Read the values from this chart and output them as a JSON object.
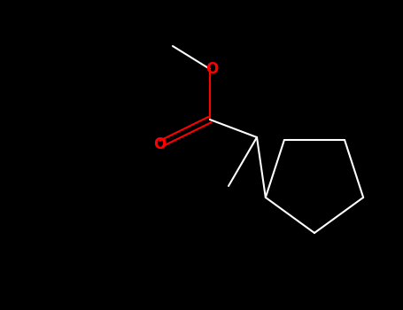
{
  "background_color": "#000000",
  "bond_color": "#ffffff",
  "oxygen_color": "#ff0000",
  "line_width": 1.5,
  "figsize": [
    4.55,
    3.5
  ],
  "dpi": 100,
  "font_size": 12,
  "font_weight": "bold"
}
